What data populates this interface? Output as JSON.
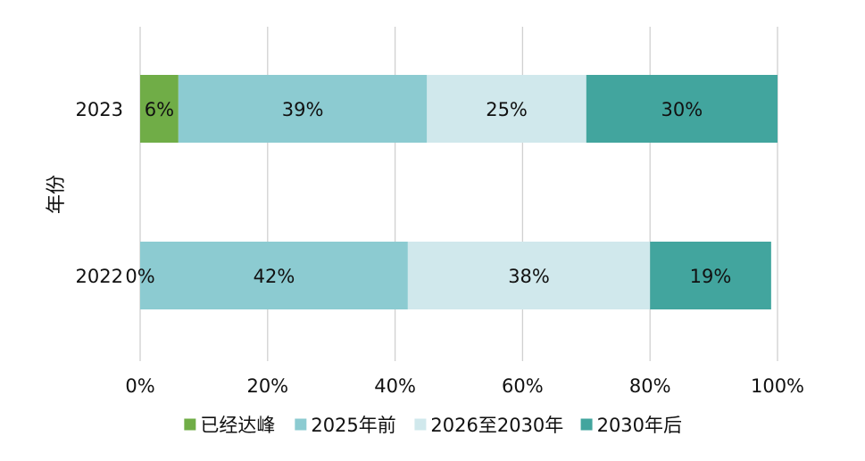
{
  "chart_data": {
    "type": "bar",
    "orientation": "horizontal",
    "stacked": true,
    "percent_stacked": true,
    "ylabel": "年份",
    "categories": [
      "2023",
      "2022"
    ],
    "series": [
      {
        "name": "已经达峰",
        "color": "#70ad47",
        "values": [
          6,
          0
        ],
        "labels": [
          "6%",
          "0%"
        ]
      },
      {
        "name": "2025年前",
        "color": "#8ccbd1",
        "values": [
          39,
          42
        ],
        "labels": [
          "39%",
          "42%"
        ]
      },
      {
        "name": "2026至2030年",
        "color": "#d0e8ec",
        "values": [
          25,
          38
        ],
        "labels": [
          "25%",
          "38%"
        ]
      },
      {
        "name": "2030年后",
        "color": "#42a59e",
        "values": [
          30,
          19
        ],
        "labels": [
          "30%",
          "19%"
        ]
      }
    ],
    "xlim": [
      0,
      100
    ],
    "xticks": [
      "0%",
      "20%",
      "40%",
      "60%",
      "80%",
      "100%"
    ],
    "grid": true,
    "legend_position": "bottom"
  }
}
